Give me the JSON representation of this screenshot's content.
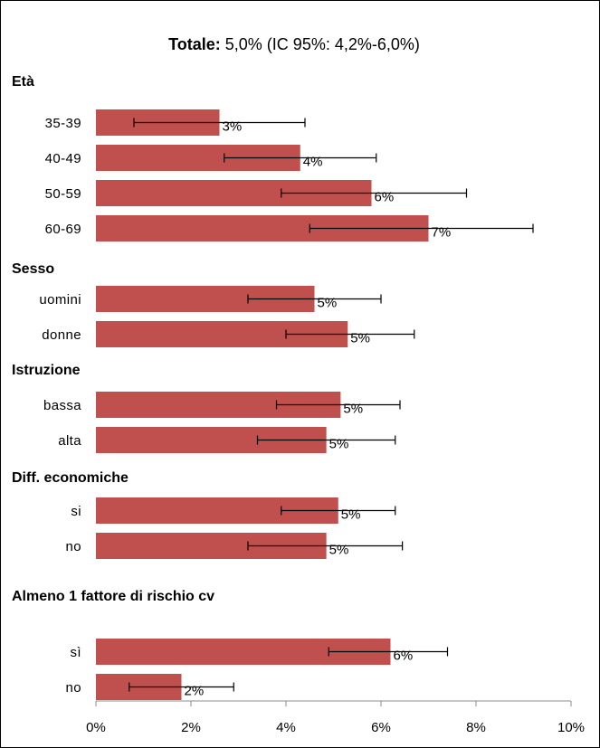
{
  "chart_data": {
    "type": "bar",
    "orientation": "horizontal",
    "title": {
      "bold": "Totale:",
      "rest": " 5,0% (IC 95%: 4,2%-6,0%)"
    },
    "xlim": [
      0,
      10
    ],
    "x_ticks": [
      "0%",
      "2%",
      "4%",
      "6%",
      "8%",
      "10%"
    ],
    "grid": false,
    "legend": "none",
    "bar_color": "#C0504D",
    "groups": [
      {
        "label": "Età",
        "items": [
          {
            "label": "35-39",
            "value": 2.6,
            "ci_low": 0.8,
            "ci_high": 4.4,
            "data_label": "3%"
          },
          {
            "label": "40-49",
            "value": 4.3,
            "ci_low": 2.7,
            "ci_high": 5.9,
            "data_label": "4%"
          },
          {
            "label": "50-59",
            "value": 5.8,
            "ci_low": 3.9,
            "ci_high": 7.8,
            "data_label": "6%"
          },
          {
            "label": "60-69",
            "value": 7.0,
            "ci_low": 4.5,
            "ci_high": 9.2,
            "data_label": "7%"
          }
        ]
      },
      {
        "label": "Sesso",
        "items": [
          {
            "label": "uomini",
            "value": 4.6,
            "ci_low": 3.2,
            "ci_high": 6.0,
            "data_label": "5%"
          },
          {
            "label": "donne",
            "value": 5.3,
            "ci_low": 4.0,
            "ci_high": 6.7,
            "data_label": "5%"
          }
        ]
      },
      {
        "label": "Istruzione",
        "items": [
          {
            "label": "bassa",
            "value": 5.15,
            "ci_low": 3.8,
            "ci_high": 6.4,
            "data_label": "5%"
          },
          {
            "label": "alta",
            "value": 4.85,
            "ci_low": 3.4,
            "ci_high": 6.3,
            "data_label": "5%"
          }
        ]
      },
      {
        "label": "Diff. economiche",
        "items": [
          {
            "label": "si",
            "value": 5.1,
            "ci_low": 3.9,
            "ci_high": 6.3,
            "data_label": "5%"
          },
          {
            "label": "no",
            "value": 4.85,
            "ci_low": 3.2,
            "ci_high": 6.45,
            "data_label": "5%"
          }
        ]
      },
      {
        "label": "Almeno 1 fattore di rischio cv",
        "items": [
          {
            "label": "sì",
            "value": 6.2,
            "ci_low": 4.9,
            "ci_high": 7.4,
            "data_label": "6%"
          },
          {
            "label": "no",
            "value": 1.8,
            "ci_low": 0.7,
            "ci_high": 2.9,
            "data_label": "2%"
          }
        ]
      }
    ]
  }
}
